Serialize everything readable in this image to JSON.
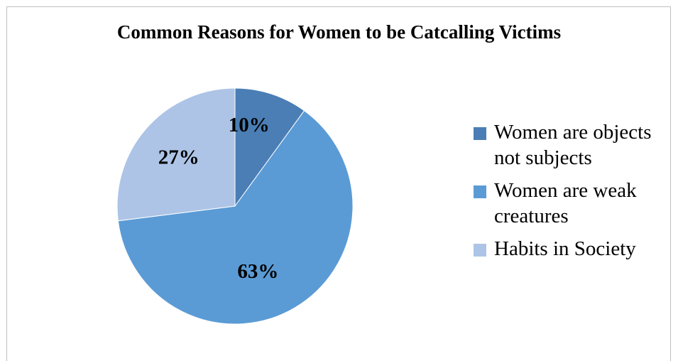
{
  "chart_data": {
    "type": "pie",
    "title": "Common Reasons for Women to be Catcalling Victims",
    "categories": [
      "Women are objects not subjects",
      "Women are weak creatures",
      "Habits in Society"
    ],
    "values": [
      10,
      63,
      27
    ],
    "labels": [
      "10%",
      "63%",
      "27%"
    ],
    "colors": [
      "#4a7eb5",
      "#5b9bd5",
      "#adc4e6"
    ],
    "legend_position": "right"
  }
}
